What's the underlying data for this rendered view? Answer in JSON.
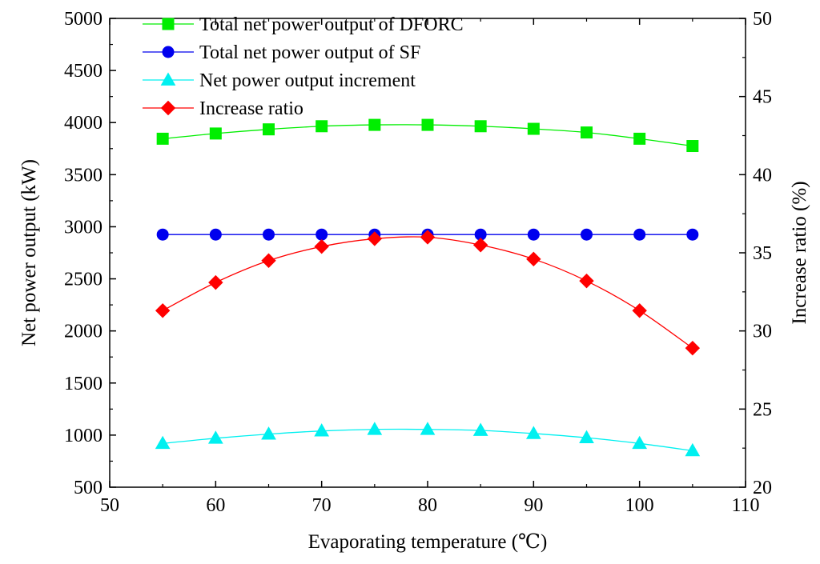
{
  "chart_data": {
    "type": "line",
    "xlabel": "Evaporating temperature (℃)",
    "ylabel_left": "Net power output (kW)",
    "ylabel_right": "Increase ratio (%)",
    "xlim": [
      50,
      110
    ],
    "ylim_left": [
      500,
      5000
    ],
    "ylim_right": [
      20,
      50
    ],
    "x_ticks": [
      50,
      60,
      70,
      80,
      90,
      100,
      110
    ],
    "y_left_ticks": [
      500,
      1000,
      1500,
      2000,
      2500,
      3000,
      3500,
      4000,
      4500,
      5000
    ],
    "y_right_ticks": [
      20,
      25,
      30,
      35,
      40,
      45,
      50
    ],
    "x": [
      55,
      60,
      65,
      70,
      75,
      80,
      85,
      90,
      95,
      100,
      105
    ],
    "series": [
      {
        "name": "Total net power output of DFORC",
        "axis": "left",
        "marker": "square",
        "color": "#00ee00",
        "values": [
          3845,
          3895,
          3935,
          3965,
          3978,
          3978,
          3965,
          3940,
          3905,
          3845,
          3775
        ]
      },
      {
        "name": "Total net power output of SF",
        "axis": "left",
        "marker": "circle",
        "color": "#0000ee",
        "values": [
          2925,
          2925,
          2925,
          2925,
          2925,
          2925,
          2925,
          2925,
          2925,
          2925,
          2925
        ]
      },
      {
        "name": "Net power output increment",
        "axis": "left",
        "marker": "triangle",
        "color": "#00f0f0",
        "values": [
          920,
          970,
          1010,
          1040,
          1055,
          1055,
          1045,
          1015,
          975,
          920,
          850
        ]
      },
      {
        "name": "Increase ratio",
        "axis": "right",
        "marker": "diamond",
        "color": "#ff0000",
        "values": [
          31.3,
          33.1,
          34.5,
          35.4,
          35.9,
          36.0,
          35.5,
          34.6,
          33.2,
          31.3,
          28.9
        ]
      }
    ],
    "legend_position": "top-left"
  }
}
